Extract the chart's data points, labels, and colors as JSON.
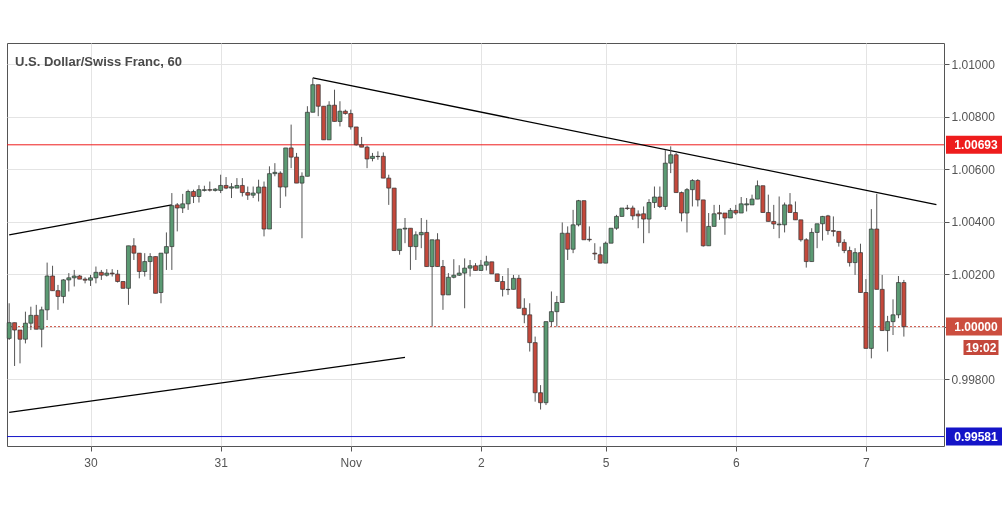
{
  "chart_data": {
    "type": "candlestick",
    "title": "U.S. Dollar/Swiss Franc, 60",
    "categories": [
      null,
      null,
      null,
      null,
      null,
      null,
      null,
      null,
      null,
      null,
      null,
      null,
      null,
      null,
      null,
      "30",
      null,
      null,
      null,
      null,
      null,
      null,
      null,
      null,
      null,
      null,
      null,
      null,
      null,
      null,
      null,
      null,
      null,
      null,
      null,
      null,
      null,
      null,
      null,
      "31",
      null,
      null,
      null,
      null,
      null,
      null,
      null,
      null,
      null,
      null,
      null,
      null,
      null,
      null,
      null,
      null,
      null,
      null,
      null,
      null,
      null,
      null,
      null,
      "Nov",
      null,
      null,
      null,
      null,
      null,
      null,
      null,
      null,
      null,
      null,
      null,
      null,
      null,
      null,
      null,
      null,
      null,
      null,
      null,
      null,
      null,
      null,
      null,
      "2",
      null,
      null,
      null,
      null,
      null,
      null,
      null,
      null,
      null,
      null,
      null,
      null,
      null,
      null,
      null,
      null,
      null,
      null,
      null,
      null,
      null,
      null,
      "5",
      null,
      null,
      null,
      null,
      null,
      null,
      null,
      null,
      null,
      null,
      null,
      null,
      null,
      null,
      null,
      null,
      null,
      null,
      null,
      null,
      null,
      null,
      null,
      "6",
      null,
      null,
      null,
      null,
      null,
      null,
      null,
      null,
      null,
      null,
      null,
      null,
      null,
      null,
      null,
      null,
      null,
      null,
      null,
      null,
      null,
      null,
      null,
      "7",
      null,
      null,
      null,
      null,
      null,
      null,
      null,
      null,
      null,
      null,
      null,
      null,
      null,
      null
    ],
    "ohlc": [
      [
        0.99955,
        1.00089,
        0.99949,
        1.00015
      ],
      [
        1.00015,
        1.00015,
        0.9985,
        0.99987
      ],
      [
        0.99987,
        0.99987,
        0.9986,
        0.99952
      ],
      [
        0.99952,
        1.00057,
        0.99936,
        1.00013
      ],
      [
        1.00013,
        1.00076,
        0.99987,
        1.00043
      ],
      [
        1.00043,
        1.00083,
        0.9999,
        0.9999
      ],
      [
        0.9999,
        1.00076,
        0.99921,
        1.00064
      ],
      [
        1.00064,
        1.00244,
        1.00025,
        1.00193
      ],
      [
        1.00193,
        1.00232,
        1.00137,
        1.00137
      ],
      [
        1.00137,
        1.00159,
        1.00064,
        1.00115
      ],
      [
        1.00115,
        1.00181,
        1.00089,
        1.00178
      ],
      [
        1.00178,
        1.00204,
        1.00134,
        1.00186
      ],
      [
        1.00186,
        1.00216,
        1.00153,
        1.00193
      ],
      [
        1.00193,
        1.00197,
        1.00181,
        1.00181
      ],
      [
        1.00181,
        1.00188,
        1.00165,
        1.00177
      ],
      [
        1.00177,
        1.00197,
        1.00155,
        1.00186
      ],
      [
        1.00186,
        1.00229,
        1.00165,
        1.00207
      ],
      [
        1.00207,
        1.00216,
        1.00178,
        1.00196
      ],
      [
        1.00196,
        1.00219,
        1.00191,
        1.00204
      ],
      [
        1.00204,
        1.00219,
        1.00191,
        1.00201
      ],
      [
        1.002,
        1.00216,
        1.00168,
        1.00172
      ],
      [
        1.00172,
        1.00172,
        1.00146,
        1.00146
      ],
      [
        1.00146,
        1.00308,
        1.00083,
        1.00308
      ],
      [
        1.00308,
        1.00337,
        1.00254,
        1.0028
      ],
      [
        1.0028,
        1.0028,
        1.00184,
        1.0021
      ],
      [
        1.0021,
        1.0028,
        1.00191,
        1.00248
      ],
      [
        1.00248,
        1.0028,
        1.00178,
        1.00267
      ],
      [
        1.00267,
        1.00267,
        1.00127,
        1.00127
      ],
      [
        1.0013,
        1.0028,
        1.00089,
        1.0028
      ],
      [
        1.0028,
        1.00359,
        1.00216,
        1.00305
      ],
      [
        1.00305,
        1.00509,
        1.00216,
        1.00461
      ],
      [
        1.00464,
        1.00471,
        1.00363,
        1.00452
      ],
      [
        1.00452,
        1.00506,
        1.00433,
        1.00468
      ],
      [
        1.00468,
        1.00522,
        1.00445,
        1.00515
      ],
      [
        1.00515,
        1.00522,
        1.00471,
        1.00496
      ],
      [
        1.00496,
        1.00539,
        1.00473,
        1.00522
      ],
      [
        1.00519,
        1.00537,
        1.00515,
        1.00522
      ],
      [
        1.00522,
        1.00553,
        1.00515,
        1.0052
      ],
      [
        1.00519,
        1.00528,
        1.00515,
        1.00524
      ],
      [
        1.00519,
        1.00579,
        1.00509,
        1.00538
      ],
      [
        1.00538,
        1.0057,
        1.00524,
        1.00528
      ],
      [
        1.00528,
        1.00547,
        1.0049,
        1.00533
      ],
      [
        1.00528,
        1.00566,
        1.00528,
        1.00538
      ],
      [
        1.00538,
        1.00566,
        1.00496,
        1.00511
      ],
      [
        1.00511,
        1.00534,
        1.00483,
        1.00501
      ],
      [
        1.00501,
        1.00534,
        1.0049,
        1.00509
      ],
      [
        1.00509,
        1.0056,
        1.00477,
        1.00532
      ],
      [
        1.00532,
        1.00553,
        1.00344,
        1.00372
      ],
      [
        1.00372,
        1.00611,
        1.00372,
        1.00583
      ],
      [
        1.00583,
        1.00623,
        1.00573,
        1.00588
      ],
      [
        1.00585,
        1.00592,
        1.00452,
        1.00532
      ],
      [
        1.00532,
        1.00681,
        1.00496,
        1.00681
      ],
      [
        1.00681,
        1.0077,
        1.00604,
        1.00646
      ],
      [
        1.00646,
        1.00662,
        1.00547,
        1.00547
      ],
      [
        1.00547,
        1.00588,
        1.00337,
        1.00573
      ],
      [
        1.00573,
        1.0084,
        1.00573,
        1.00817
      ],
      [
        1.00817,
        1.00948,
        1.00817,
        1.00922
      ],
      [
        1.00922,
        1.00922,
        1.00802,
        1.0084
      ],
      [
        1.0084,
        1.0084,
        1.00712,
        1.00712
      ],
      [
        1.00712,
        1.00859,
        1.00712,
        1.00844
      ],
      [
        1.00844,
        1.00903,
        1.00782,
        1.00782
      ],
      [
        1.00782,
        1.00859,
        1.00763,
        1.00821
      ],
      [
        1.00821,
        1.00827,
        1.00808,
        1.00812
      ],
      [
        1.00812,
        1.00827,
        1.00751,
        1.00761
      ],
      [
        1.00761,
        1.00761,
        1.0069,
        1.00693
      ],
      [
        1.00693,
        1.00723,
        1.00684,
        1.00684
      ],
      [
        1.00684,
        1.0069,
        1.00604,
        1.00639
      ],
      [
        1.00641,
        1.00662,
        1.0063,
        1.00649
      ],
      [
        1.00649,
        1.00668,
        1.00636,
        1.00648
      ],
      [
        1.00649,
        1.00664,
        1.00566,
        1.00566
      ],
      [
        1.00566,
        1.00579,
        1.00464,
        1.00528
      ],
      [
        1.00528,
        1.00528,
        1.0029,
        1.0029
      ],
      [
        1.0029,
        1.00372,
        1.00274,
        1.00372
      ],
      [
        1.00372,
        1.00414,
        1.00318,
        1.00375
      ],
      [
        1.00375,
        1.00375,
        1.00216,
        1.00305
      ],
      [
        1.00305,
        1.00363,
        1.00254,
        1.0035
      ],
      [
        1.0035,
        1.00414,
        1.00299,
        1.00359
      ],
      [
        1.00359,
        1.00407,
        1.00229,
        1.00229
      ],
      [
        1.00229,
        1.00331,
        1.0,
        1.00331
      ],
      [
        1.00331,
        1.00356,
        1.00229,
        1.00229
      ],
      [
        1.00229,
        1.00254,
        1.00064,
        1.00121
      ],
      [
        1.00121,
        1.00204,
        1.00121,
        1.00188
      ],
      [
        1.00188,
        1.00257,
        1.00184,
        1.00196
      ],
      [
        1.00196,
        1.00234,
        1.00193,
        1.00204
      ],
      [
        1.00204,
        1.0026,
        1.0007,
        1.00223
      ],
      [
        1.00223,
        1.00254,
        1.00191,
        1.00232
      ],
      [
        1.00232,
        1.00242,
        1.00214,
        1.00214
      ],
      [
        1.00214,
        1.00254,
        1.00214,
        1.00234
      ],
      [
        1.00234,
        1.0027,
        1.00214,
        1.00247
      ],
      [
        1.00247,
        1.00247,
        1.00201,
        1.00201
      ],
      [
        1.00201,
        1.00201,
        1.00172,
        1.00172
      ],
      [
        1.00172,
        1.00193,
        1.00115,
        1.00142
      ],
      [
        1.00142,
        1.00223,
        1.00121,
        1.00141
      ],
      [
        1.00142,
        1.00197,
        1.00142,
        1.00184
      ],
      [
        1.00184,
        1.00197,
        1.0007,
        1.0007
      ],
      [
        1.0007,
        1.00108,
        1.00013,
        1.00045
      ],
      [
        1.00045,
        1.00089,
        0.99905,
        0.99939
      ],
      [
        0.99939,
        0.99962,
        0.99714,
        0.99748
      ],
      [
        0.99748,
        0.99777,
        0.99684,
        0.9971
      ],
      [
        0.9971,
        1.00019,
        0.99701,
        1.00019
      ],
      [
        1.00019,
        1.00134,
        1.0,
        1.00057
      ],
      [
        1.00057,
        1.00117,
        1.0,
        1.00092
      ],
      [
        1.00092,
        1.00397,
        1.00092,
        1.00356
      ],
      [
        1.00356,
        1.00382,
        1.00254,
        1.00295
      ],
      [
        1.00295,
        1.00445,
        1.0028,
        1.00388
      ],
      [
        1.00388,
        1.00483,
        1.00382,
        1.0048
      ],
      [
        1.0048,
        1.0048,
        1.00331,
        1.00331
      ],
      [
        1.00333,
        1.00382,
        1.00324,
        1.00331
      ],
      [
        1.0028,
        1.00318,
        1.00254,
        1.00277
      ],
      [
        1.00274,
        1.00305,
        1.00242,
        1.00242
      ],
      [
        1.00242,
        1.00324,
        1.00242,
        1.00318
      ],
      [
        1.00318,
        1.00375,
        1.00318,
        1.00375
      ],
      [
        1.00375,
        1.00426,
        1.00369,
        1.0042
      ],
      [
        1.0042,
        1.00452,
        1.0042,
        1.00452
      ],
      [
        1.00452,
        1.00464,
        1.00445,
        1.0045
      ],
      [
        1.00452,
        1.00461,
        1.00407,
        1.00422
      ],
      [
        1.00429,
        1.00443,
        1.00375,
        1.00422
      ],
      [
        1.0043,
        1.00458,
        1.00318,
        1.0041
      ],
      [
        1.0041,
        1.00486,
        1.00356,
        1.00473
      ],
      [
        1.00473,
        1.00534,
        1.00452,
        1.00494
      ],
      [
        1.00494,
        1.00534,
        1.00452,
        1.00458
      ],
      [
        1.00458,
        1.00674,
        1.00445,
        1.00623
      ],
      [
        1.00623,
        1.00687,
        1.00585,
        1.00655
      ],
      [
        1.00655,
        1.00662,
        1.00511,
        1.00511
      ],
      [
        1.00511,
        1.00515,
        1.00401,
        1.00433
      ],
      [
        1.00433,
        1.00528,
        1.00359,
        1.00522
      ],
      [
        1.00522,
        1.00562,
        1.00458,
        1.00557
      ],
      [
        1.00557,
        1.00562,
        1.00458,
        1.00483
      ],
      [
        1.00483,
        1.00483,
        1.00305,
        1.00308
      ],
      [
        1.00308,
        1.00433,
        1.00308,
        1.00382
      ],
      [
        1.00382,
        1.00464,
        1.00382,
        1.0043
      ],
      [
        1.00434,
        1.00464,
        1.00407,
        1.0043
      ],
      [
        1.00433,
        1.00433,
        1.0035,
        1.00414
      ],
      [
        1.00414,
        1.00452,
        1.00414,
        1.00443
      ],
      [
        1.00443,
        1.00464,
        1.00426,
        1.00433
      ],
      [
        1.00433,
        1.00494,
        1.00433,
        1.00468
      ],
      [
        1.00464,
        1.0049,
        1.00439,
        1.00468
      ],
      [
        1.00464,
        1.00503,
        1.00464,
        1.00486
      ],
      [
        1.00486,
        1.00557,
        1.00486,
        1.00537
      ],
      [
        1.00537,
        1.00537,
        1.00435,
        1.00435
      ],
      [
        1.00435,
        1.00503,
        1.00401,
        1.00401
      ],
      [
        1.00401,
        1.00464,
        1.00372,
        1.00391
      ],
      [
        1.00388,
        1.00496,
        1.00337,
        1.00391
      ],
      [
        1.00388,
        1.00473,
        1.00359,
        1.00464
      ],
      [
        1.00464,
        1.00509,
        1.00435,
        1.00435
      ],
      [
        1.00435,
        1.00477,
        1.00407,
        1.00407
      ],
      [
        1.00407,
        1.00407,
        1.00324,
        1.00331
      ],
      [
        1.00331,
        1.00337,
        1.00225,
        1.00248
      ],
      [
        1.00248,
        1.00375,
        1.00248,
        1.00359
      ],
      [
        1.00359,
        1.00392,
        1.00299,
        1.00392
      ],
      [
        1.00392,
        1.00422,
        1.00328,
        1.0042
      ],
      [
        1.00422,
        1.00426,
        1.0035,
        1.00366
      ],
      [
        1.00366,
        1.0042,
        1.00344,
        1.00363
      ],
      [
        1.00363,
        1.00363,
        1.00305,
        1.00321
      ],
      [
        1.00321,
        1.00333,
        1.0028,
        1.0029
      ],
      [
        1.0029,
        1.00305,
        1.00229,
        1.00244
      ],
      [
        1.00244,
        1.00299,
        1.00197,
        1.00282
      ],
      [
        1.00282,
        1.00316,
        1.0013,
        1.0013
      ],
      [
        1.0013,
        1.00181,
        0.99917,
        0.99917
      ],
      [
        0.99917,
        1.00448,
        0.99879,
        1.00372
      ],
      [
        1.00372,
        1.00506,
        1.00142,
        1.00142
      ],
      [
        1.00142,
        1.00197,
        0.99985,
        0.99985
      ],
      [
        0.99985,
        1.00041,
        0.99905,
        1.00019
      ],
      [
        1.00019,
        1.00104,
        0.99968,
        1.00045
      ],
      [
        1.00045,
        1.00193,
        1.00032,
        1.00168
      ],
      [
        1.00168,
        1.00178,
        0.99962,
        1.0
      ],
      null,
      null,
      null,
      null,
      null,
      null,
      null
    ],
    "colors": [
      "#5b9a73",
      "#c4483b",
      "#c4483b",
      "#5b9a73",
      "#5b9a73",
      "#c4483b",
      "#5b9a73",
      "#5b9a73",
      "#c4483b",
      "#c4483b",
      "#5b9a73",
      "#5b9a73",
      "#5b9a73",
      "#c4483b",
      "#c4483b",
      "#5b9a73",
      "#5b9a73",
      "#c4483b",
      "#5b9a73",
      "#c4483b",
      "#c4483b",
      "#c4483b",
      "#5b9a73",
      "#c4483b",
      "#c4483b",
      "#5b9a73",
      "#5b9a73",
      "#c4483b",
      "#5b9a73",
      "#5b9a73",
      "#5b9a73",
      "#c4483b",
      "#5b9a73",
      "#5b9a73",
      "#c4483b",
      "#5b9a73",
      "#5b9a73",
      "#c4483b",
      "#5b9a73",
      "#5b9a73",
      "#c4483b",
      "#5b9a73",
      "#5b9a73",
      "#c4483b",
      "#c4483b",
      "#5b9a73",
      "#5b9a73",
      "#c4483b",
      "#5b9a73",
      "#5b9a73",
      "#c4483b",
      "#5b9a73",
      "#c4483b",
      "#c4483b",
      "#5b9a73",
      "#5b9a73",
      "#5b9a73",
      "#c4483b",
      "#c4483b",
      "#5b9a73",
      "#c4483b",
      "#5b9a73",
      "#c4483b",
      "#c4483b",
      "#c4483b",
      "#c4483b",
      "#c4483b",
      "#5b9a73",
      "#c4483b",
      "#c4483b",
      "#c4483b",
      "#c4483b",
      "#5b9a73",
      "#5b9a73",
      "#c4483b",
      "#5b9a73",
      "#5b9a73",
      "#c4483b",
      "#5b9a73",
      "#c4483b",
      "#c4483b",
      "#5b9a73",
      "#5b9a73",
      "#5b9a73",
      "#5b9a73",
      "#5b9a73",
      "#c4483b",
      "#5b9a73",
      "#5b9a73",
      "#c4483b",
      "#c4483b",
      "#c4483b",
      "#c4483b",
      "#5b9a73",
      "#c4483b",
      "#c4483b",
      "#c4483b",
      "#c4483b",
      "#c4483b",
      "#5b9a73",
      "#5b9a73",
      "#5b9a73",
      "#5b9a73",
      "#c4483b",
      "#5b9a73",
      "#5b9a73",
      "#c4483b",
      "#c4483b",
      "#c4483b",
      "#c4483b",
      "#5b9a73",
      "#5b9a73",
      "#5b9a73",
      "#5b9a73",
      "#c4483b",
      "#c4483b",
      "#c4483b",
      "#c4483b",
      "#5b9a73",
      "#5b9a73",
      "#c4483b",
      "#5b9a73",
      "#5b9a73",
      "#c4483b",
      "#c4483b",
      "#5b9a73",
      "#5b9a73",
      "#c4483b",
      "#c4483b",
      "#5b9a73",
      "#5b9a73",
      "#c4483b",
      "#c4483b",
      "#5b9a73",
      "#c4483b",
      "#5b9a73",
      "#5b9a73",
      "#5b9a73",
      "#5b9a73",
      "#c4483b",
      "#c4483b",
      "#c4483b",
      "#5b9a73",
      "#5b9a73",
      "#c4483b",
      "#c4483b",
      "#c4483b",
      "#c4483b",
      "#5b9a73",
      "#5b9a73",
      "#5b9a73",
      "#c4483b",
      "#c4483b",
      "#c4483b",
      "#c4483b",
      "#c4483b",
      "#5b9a73",
      "#c4483b",
      "#c4483b",
      "#5b9a73",
      "#c4483b",
      "#c4483b",
      "#5b9a73",
      "#5b9a73",
      "#5b9a73",
      "#c4483b",
      null,
      null,
      null,
      null,
      null,
      null,
      null
    ],
    "series": [
      {
        "type": "line",
        "color": "#000000",
        "values": [
          null,
          null,
          null,
          null,
          null,
          null,
          null,
          null,
          null,
          null,
          null,
          null,
          null,
          null,
          null,
          null,
          null,
          null,
          null,
          null,
          null,
          null,
          null,
          null,
          null,
          null,
          null,
          null,
          null,
          null,
          null,
          null,
          null,
          null,
          null,
          null,
          null,
          null,
          null,
          null,
          null,
          null,
          null,
          null,
          null,
          null,
          null,
          null,
          null,
          null,
          null,
          null,
          null,
          null,
          null,
          null,
          1.00948,
          null,
          null,
          null,
          null,
          null,
          null,
          null,
          null,
          null,
          null,
          null,
          null,
          null,
          null,
          null,
          null,
          null,
          null,
          null,
          null,
          null,
          null,
          null,
          null,
          null,
          null,
          null,
          null,
          null,
          null,
          null,
          null,
          null,
          null,
          null,
          null,
          null,
          null,
          null,
          null,
          null,
          null,
          null,
          null,
          null,
          null,
          null,
          null,
          null,
          null,
          null,
          null,
          null,
          null,
          null,
          null,
          null,
          null,
          null,
          null,
          null,
          null,
          null,
          null,
          null,
          null,
          null,
          null,
          null,
          null,
          null,
          null,
          null,
          null,
          null,
          null,
          null,
          null,
          null,
          null,
          null,
          null,
          null,
          null,
          null,
          null,
          null,
          null,
          null,
          null,
          null,
          null,
          null,
          null,
          null,
          null,
          null,
          null,
          null,
          null,
          null,
          null,
          null,
          null,
          null,
          null,
          null,
          null,
          null,
          null,
          null,
          null,
          null,
          null,
          1.00465,
          null
        ]
      },
      {
        "type": "line",
        "color": "#000000",
        "values": [
          1.0035,
          null,
          null,
          null,
          null,
          null,
          null,
          null,
          null,
          null,
          null,
          null,
          null,
          null,
          null,
          null,
          null,
          null,
          null,
          null,
          null,
          null,
          null,
          null,
          null,
          null,
          null,
          null,
          null,
          null,
          1.00464,
          null,
          null,
          null,
          null,
          null,
          null,
          null,
          null,
          null,
          null,
          null,
          null,
          null,
          null,
          null,
          null,
          null,
          null,
          null,
          null,
          null,
          null,
          null,
          null,
          null,
          null,
          null,
          null,
          null,
          null,
          null,
          null,
          null,
          null,
          null,
          null,
          null,
          null,
          null,
          null,
          null,
          null,
          null,
          null,
          null,
          null,
          null,
          null,
          null,
          null,
          null,
          null,
          null,
          null,
          null,
          null,
          null,
          null,
          null,
          null,
          null,
          null,
          null,
          null,
          null,
          null,
          null,
          null,
          null,
          null,
          null,
          null,
          null,
          null,
          null,
          null,
          null,
          null,
          null,
          null,
          null,
          null,
          null,
          null,
          null,
          null,
          null,
          null,
          null,
          null,
          null,
          null,
          null,
          null,
          null,
          null,
          null,
          null,
          null,
          null,
          null,
          null,
          null,
          null,
          null,
          null,
          null,
          null,
          null,
          null,
          null,
          null,
          null,
          null,
          null,
          null,
          null,
          null,
          null,
          null,
          null,
          null,
          null,
          null,
          null,
          null,
          null,
          null,
          null,
          null,
          null,
          null,
          null,
          null,
          null,
          null,
          null,
          null,
          null,
          null,
          null,
          null
        ]
      },
      {
        "type": "line",
        "color": "#000000",
        "values": [
          0.99673,
          null,
          null,
          null,
          null,
          null,
          null,
          null,
          null,
          null,
          null,
          null,
          null,
          null,
          null,
          null,
          null,
          null,
          null,
          null,
          null,
          null,
          null,
          null,
          null,
          null,
          null,
          null,
          null,
          null,
          null,
          null,
          null,
          null,
          null,
          null,
          null,
          null,
          null,
          null,
          null,
          null,
          null,
          null,
          null,
          null,
          null,
          null,
          null,
          null,
          null,
          null,
          null,
          null,
          null,
          null,
          null,
          null,
          null,
          null,
          null,
          null,
          null,
          null,
          null,
          null,
          null,
          null,
          null,
          null,
          null,
          null,
          null,
          0.99883,
          null,
          null,
          null,
          null,
          null,
          null,
          null,
          null,
          null,
          null,
          null,
          null,
          null,
          null,
          null,
          null,
          null,
          null,
          null,
          null,
          null,
          null,
          null,
          null,
          null,
          null,
          null,
          null,
          null,
          null,
          null,
          null,
          null,
          null,
          null,
          null,
          null,
          null,
          null,
          null,
          null,
          null,
          null,
          null,
          null,
          null,
          null,
          null,
          null,
          null,
          null,
          null,
          null,
          null,
          null,
          null,
          null,
          null,
          null,
          null,
          null,
          null,
          null,
          null,
          null,
          null,
          null,
          null,
          null,
          null,
          null,
          null,
          null,
          null,
          null,
          null,
          null,
          null,
          null,
          null,
          null,
          null,
          null,
          null,
          null,
          null,
          null,
          null,
          null,
          null,
          null,
          null,
          null,
          null,
          null,
          null,
          null,
          null,
          null
        ]
      }
    ],
    "ref_lines": [
      {
        "axis": "y",
        "value": 1.00693,
        "label": "1.00693",
        "color": "#ee1c1c",
        "line_style": "solid"
      },
      {
        "axis": "y",
        "value": 1.0,
        "label": "1.00000",
        "color": "#cc4e3f",
        "line_style": "dotted"
      },
      {
        "axis": "y",
        "value": 0.99581,
        "label": "0.99581",
        "color": "#1414c8",
        "line_style": "solid"
      }
    ],
    "annotations": [
      "19:02"
    ],
    "ylim": [
      0.99545,
      1.01081
    ],
    "yticks": [
      {
        "value": 0.998,
        "label": "0.99800"
      },
      {
        "value": 1.0,
        "label": null
      },
      {
        "value": 1.002,
        "label": "1.00200"
      },
      {
        "value": 1.004,
        "label": "1.00400"
      },
      {
        "value": 1.006,
        "label": "1.00600"
      },
      {
        "value": 1.008,
        "label": "1.00800"
      },
      {
        "value": 1.01,
        "label": "1.01000"
      }
    ],
    "grid": true
  }
}
